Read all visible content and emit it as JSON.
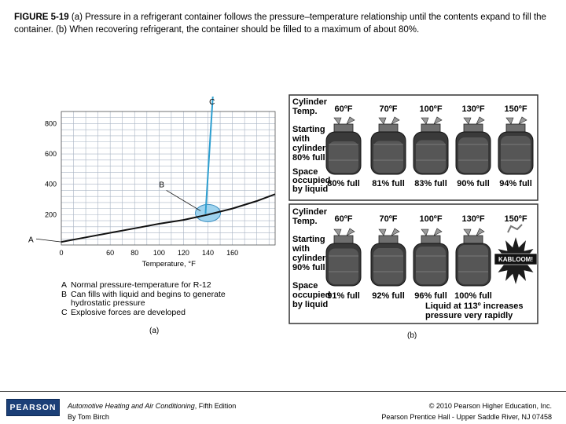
{
  "caption": {
    "label": "FIGURE 5-19",
    "text": " (a) Pressure in a refrigerant container follows the pressure–temperature relationship until the contents expand to fill the container. (b) When recovering refrigerant, the container should be filled to a maximum of about 80%."
  },
  "chart_data": {
    "type": "line",
    "xlabel": "Temperature, °F",
    "xticks": [
      "0",
      "60",
      "80",
      "100",
      "120",
      "140",
      "160"
    ],
    "yticks": [
      "200",
      "400",
      "600",
      "800"
    ],
    "xlim": [
      0,
      175
    ],
    "ylim": [
      0,
      880
    ],
    "series": [
      {
        "x": [
          0,
          20,
          40,
          60,
          80,
          100,
          120,
          140,
          160,
          175
        ],
        "y": [
          20,
          50,
          80,
          110,
          140,
          165,
          200,
          240,
          290,
          335
        ]
      }
    ],
    "spike_x": [
      140,
      142
    ],
    "spike_y": [
      240,
      940
    ],
    "marker_labels": [
      "A",
      "B",
      "C"
    ],
    "legend": [
      {
        "key": "A",
        "text": "Normal pressure-temperature for R-12"
      },
      {
        "key": "B",
        "text": "Can fills with liquid and begins to generate"
      },
      {
        "key": "",
        "text": "hydrostatic pressure"
      },
      {
        "key": "C",
        "text": "Explosive forces are developed"
      }
    ],
    "panel_label": "(a)"
  },
  "panels": {
    "label": "(b)",
    "top": {
      "header": [
        "Cylinder",
        "Temp."
      ],
      "temps": [
        "60ºF",
        "70ºF",
        "100ºF",
        "130ºF",
        "150ºF"
      ],
      "start": [
        "Starting",
        "with",
        "cylinder",
        "80% full"
      ],
      "occupied": [
        "Space",
        "occupied",
        "by liquid"
      ],
      "fills": [
        "80% full",
        "81% full",
        "83% full",
        "90% full",
        "94% full"
      ]
    },
    "bottom": {
      "header": [
        "Cylinder",
        "Temp."
      ],
      "temps": [
        "60ºF",
        "70ºF",
        "100ºF",
        "130ºF",
        "150ºF"
      ],
      "start": [
        "Starting",
        "with",
        "cylinder",
        "90% full"
      ],
      "occupied": [
        "Space",
        "occupied",
        "by liquid"
      ],
      "fills": [
        "91% full",
        "92% full",
        "96% full",
        "100% full"
      ],
      "explosion": "KABLOOM!",
      "warning": [
        "Liquid at 113º increases",
        "pressure very rapidly"
      ]
    }
  },
  "footer": {
    "logo": "PEARSON",
    "book_title": "Automotive Heating and Air Conditioning",
    "edition": ", Fifth Edition",
    "author": "By Tom Birch",
    "copyright": "© 2010 Pearson Higher Education, Inc.",
    "publisher": "Pearson Prentice Hall - Upper Saddle River, NJ 07458"
  }
}
